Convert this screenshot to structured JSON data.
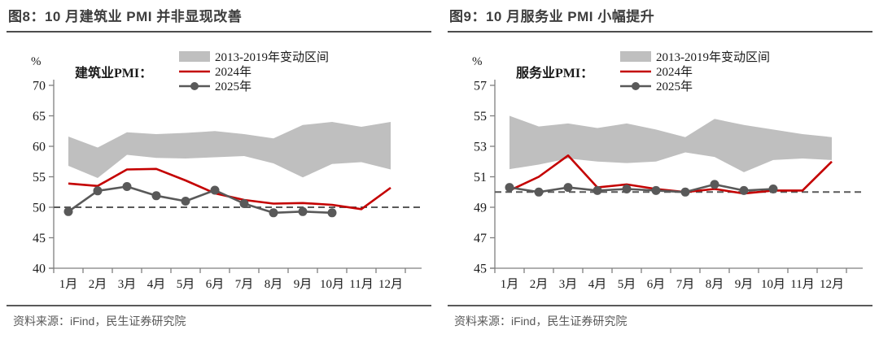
{
  "page_background": "#ffffff",
  "chart_data": [
    {
      "type": "line",
      "title": "图8：10 月建筑业 PMI 并非显现改善",
      "series_label": "建筑业PMI：",
      "unit_label": "%",
      "categories": [
        "1月",
        "2月",
        "3月",
        "4月",
        "5月",
        "6月",
        "7月",
        "8月",
        "9月",
        "10月",
        "11月",
        "12月"
      ],
      "ylim": [
        40,
        70
      ],
      "yticks": [
        40,
        45,
        50,
        55,
        60,
        65,
        70
      ],
      "reference_line": 50,
      "grid": false,
      "legend_position": "top",
      "band": {
        "label": "2013-2019年变动区间",
        "color": "#bfbfbf",
        "upper": [
          61.6,
          59.8,
          62.3,
          62.0,
          62.2,
          62.5,
          62.0,
          61.3,
          63.5,
          64.0,
          63.2,
          64.0
        ],
        "lower": [
          56.8,
          54.8,
          58.6,
          58.1,
          58.0,
          58.2,
          58.4,
          57.2,
          54.9,
          57.1,
          57.4,
          56.2
        ]
      },
      "series": [
        {
          "label": "2024年",
          "color": "#c40000",
          "marker": "none",
          "values": [
            53.9,
            53.5,
            56.2,
            56.3,
            54.4,
            52.3,
            51.2,
            50.6,
            50.7,
            50.4,
            49.7,
            53.2
          ]
        },
        {
          "label": "2025年",
          "color": "#595959",
          "marker": "circle",
          "values": [
            49.3,
            52.7,
            53.4,
            51.9,
            51.0,
            52.8,
            50.6,
            49.1,
            49.3,
            49.1
          ]
        }
      ],
      "source": "资料来源：iFind，民生证券研究院"
    },
    {
      "type": "line",
      "title": "图9：10 月服务业 PMI 小幅提升",
      "series_label": "服务业PMI：",
      "unit_label": "%",
      "categories": [
        "1月",
        "2月",
        "3月",
        "4月",
        "5月",
        "6月",
        "7月",
        "8月",
        "9月",
        "10月",
        "11月",
        "12月"
      ],
      "ylim": [
        45,
        57
      ],
      "yticks": [
        45,
        47,
        49,
        51,
        53,
        55,
        57
      ],
      "reference_line": 50,
      "grid": false,
      "legend_position": "top",
      "band": {
        "label": "2013-2019年变动区间",
        "color": "#bfbfbf",
        "upper": [
          55.0,
          54.3,
          54.5,
          54.2,
          54.5,
          54.1,
          53.6,
          54.8,
          54.4,
          54.1,
          53.8,
          53.6
        ],
        "lower": [
          51.5,
          51.8,
          52.2,
          52.0,
          51.9,
          52.0,
          52.6,
          52.3,
          51.3,
          52.1,
          52.2,
          52.1
        ]
      },
      "series": [
        {
          "label": "2024年",
          "color": "#c40000",
          "marker": "none",
          "values": [
            50.1,
            51.0,
            52.4,
            50.3,
            50.5,
            50.2,
            50.0,
            50.2,
            49.9,
            50.1,
            50.1,
            52.0
          ]
        },
        {
          "label": "2025年",
          "color": "#595959",
          "marker": "circle",
          "values": [
            50.3,
            50.0,
            50.3,
            50.1,
            50.2,
            50.1,
            50.0,
            50.5,
            50.1,
            50.2
          ]
        }
      ],
      "source": "资料来源：iFind，民生证券研究院"
    }
  ],
  "style": {
    "dashed_line_color": "#595959",
    "axis_color": "#7f7f7f",
    "tick_label_color": "#1a1a1a",
    "title_color": "#3d3d3d",
    "source_color": "#595959"
  }
}
